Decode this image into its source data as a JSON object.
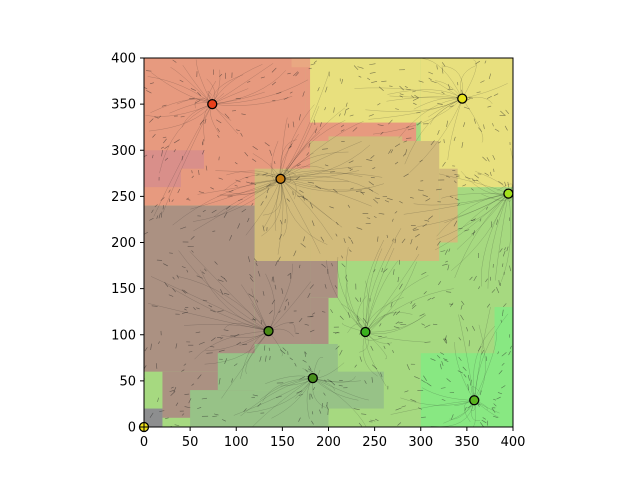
{
  "chart_data": {
    "type": "scatter",
    "title": "",
    "xlabel": "",
    "ylabel": "",
    "xlim": [
      0,
      400
    ],
    "ylim": [
      0,
      400
    ],
    "x_ticks": [
      0,
      50,
      100,
      150,
      200,
      250,
      300,
      350,
      400
    ],
    "y_ticks": [
      0,
      50,
      100,
      150,
      200,
      250,
      300,
      350,
      400
    ],
    "x_tick_labels": [
      "0",
      "50",
      "100",
      "150",
      "200",
      "250",
      "300",
      "350",
      "400"
    ],
    "y_tick_labels": [
      "0",
      "50",
      "100",
      "150",
      "200",
      "250",
      "300",
      "350",
      "400"
    ],
    "points": [
      {
        "x": 74,
        "y": 350,
        "color": "#e8401c"
      },
      {
        "x": 148,
        "y": 269,
        "color": "#c87d12"
      },
      {
        "x": 345,
        "y": 356,
        "color": "#e7e41b"
      },
      {
        "x": 395,
        "y": 253,
        "color": "#a5e11d"
      },
      {
        "x": 135,
        "y": 104,
        "color": "#4a8a14"
      },
      {
        "x": 240,
        "y": 103,
        "color": "#3ab01e"
      },
      {
        "x": 183,
        "y": 53,
        "color": "#478e1b"
      },
      {
        "x": 358,
        "y": 29,
        "color": "#5ab41e"
      },
      {
        "x": 0,
        "y": 0,
        "color": "#f1e21a"
      }
    ],
    "region_colors": {
      "red": "#e79a7f",
      "orange": "#e9a882",
      "yellow": "#e8e07e",
      "brown": "#ab9182",
      "tan": "#d2bb7b",
      "green_light": "#a6d980",
      "green_bright": "#88e882",
      "green_grey": "#97c287",
      "pink": "#d98f8a",
      "grey": "#8d8e8f"
    }
  }
}
